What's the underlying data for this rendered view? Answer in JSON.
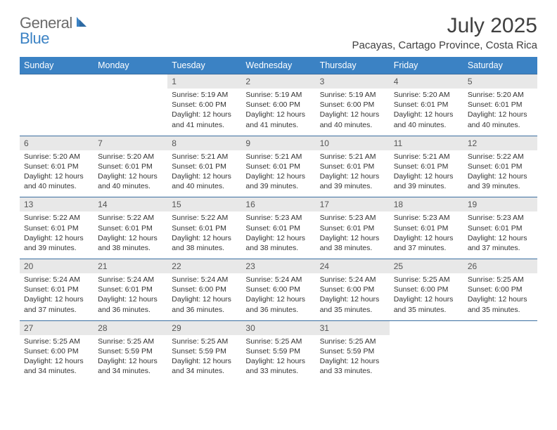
{
  "logo": {
    "general": "General",
    "blue": "Blue"
  },
  "title": "July 2025",
  "location": "Pacayas, Cartago Province, Costa Rica",
  "colors": {
    "header_bg": "#3b82c4",
    "header_text": "#ffffff",
    "daynum_bg": "#e8e8e8",
    "daynum_text": "#555555",
    "body_text": "#333333",
    "rule": "#3b6ea0",
    "logo_gray": "#6b6b6b",
    "logo_blue": "#3b82c4"
  },
  "day_headers": [
    "Sunday",
    "Monday",
    "Tuesday",
    "Wednesday",
    "Thursday",
    "Friday",
    "Saturday"
  ],
  "weeks": [
    {
      "nums": [
        "",
        "",
        "1",
        "2",
        "3",
        "4",
        "5"
      ],
      "cells": [
        null,
        null,
        {
          "sunrise": "Sunrise: 5:19 AM",
          "sunset": "Sunset: 6:00 PM",
          "day1": "Daylight: 12 hours",
          "day2": "and 41 minutes."
        },
        {
          "sunrise": "Sunrise: 5:19 AM",
          "sunset": "Sunset: 6:00 PM",
          "day1": "Daylight: 12 hours",
          "day2": "and 41 minutes."
        },
        {
          "sunrise": "Sunrise: 5:19 AM",
          "sunset": "Sunset: 6:00 PM",
          "day1": "Daylight: 12 hours",
          "day2": "and 40 minutes."
        },
        {
          "sunrise": "Sunrise: 5:20 AM",
          "sunset": "Sunset: 6:01 PM",
          "day1": "Daylight: 12 hours",
          "day2": "and 40 minutes."
        },
        {
          "sunrise": "Sunrise: 5:20 AM",
          "sunset": "Sunset: 6:01 PM",
          "day1": "Daylight: 12 hours",
          "day2": "and 40 minutes."
        }
      ]
    },
    {
      "nums": [
        "6",
        "7",
        "8",
        "9",
        "10",
        "11",
        "12"
      ],
      "cells": [
        {
          "sunrise": "Sunrise: 5:20 AM",
          "sunset": "Sunset: 6:01 PM",
          "day1": "Daylight: 12 hours",
          "day2": "and 40 minutes."
        },
        {
          "sunrise": "Sunrise: 5:20 AM",
          "sunset": "Sunset: 6:01 PM",
          "day1": "Daylight: 12 hours",
          "day2": "and 40 minutes."
        },
        {
          "sunrise": "Sunrise: 5:21 AM",
          "sunset": "Sunset: 6:01 PM",
          "day1": "Daylight: 12 hours",
          "day2": "and 40 minutes."
        },
        {
          "sunrise": "Sunrise: 5:21 AM",
          "sunset": "Sunset: 6:01 PM",
          "day1": "Daylight: 12 hours",
          "day2": "and 39 minutes."
        },
        {
          "sunrise": "Sunrise: 5:21 AM",
          "sunset": "Sunset: 6:01 PM",
          "day1": "Daylight: 12 hours",
          "day2": "and 39 minutes."
        },
        {
          "sunrise": "Sunrise: 5:21 AM",
          "sunset": "Sunset: 6:01 PM",
          "day1": "Daylight: 12 hours",
          "day2": "and 39 minutes."
        },
        {
          "sunrise": "Sunrise: 5:22 AM",
          "sunset": "Sunset: 6:01 PM",
          "day1": "Daylight: 12 hours",
          "day2": "and 39 minutes."
        }
      ]
    },
    {
      "nums": [
        "13",
        "14",
        "15",
        "16",
        "17",
        "18",
        "19"
      ],
      "cells": [
        {
          "sunrise": "Sunrise: 5:22 AM",
          "sunset": "Sunset: 6:01 PM",
          "day1": "Daylight: 12 hours",
          "day2": "and 39 minutes."
        },
        {
          "sunrise": "Sunrise: 5:22 AM",
          "sunset": "Sunset: 6:01 PM",
          "day1": "Daylight: 12 hours",
          "day2": "and 38 minutes."
        },
        {
          "sunrise": "Sunrise: 5:22 AM",
          "sunset": "Sunset: 6:01 PM",
          "day1": "Daylight: 12 hours",
          "day2": "and 38 minutes."
        },
        {
          "sunrise": "Sunrise: 5:23 AM",
          "sunset": "Sunset: 6:01 PM",
          "day1": "Daylight: 12 hours",
          "day2": "and 38 minutes."
        },
        {
          "sunrise": "Sunrise: 5:23 AM",
          "sunset": "Sunset: 6:01 PM",
          "day1": "Daylight: 12 hours",
          "day2": "and 38 minutes."
        },
        {
          "sunrise": "Sunrise: 5:23 AM",
          "sunset": "Sunset: 6:01 PM",
          "day1": "Daylight: 12 hours",
          "day2": "and 37 minutes."
        },
        {
          "sunrise": "Sunrise: 5:23 AM",
          "sunset": "Sunset: 6:01 PM",
          "day1": "Daylight: 12 hours",
          "day2": "and 37 minutes."
        }
      ]
    },
    {
      "nums": [
        "20",
        "21",
        "22",
        "23",
        "24",
        "25",
        "26"
      ],
      "cells": [
        {
          "sunrise": "Sunrise: 5:24 AM",
          "sunset": "Sunset: 6:01 PM",
          "day1": "Daylight: 12 hours",
          "day2": "and 37 minutes."
        },
        {
          "sunrise": "Sunrise: 5:24 AM",
          "sunset": "Sunset: 6:01 PM",
          "day1": "Daylight: 12 hours",
          "day2": "and 36 minutes."
        },
        {
          "sunrise": "Sunrise: 5:24 AM",
          "sunset": "Sunset: 6:00 PM",
          "day1": "Daylight: 12 hours",
          "day2": "and 36 minutes."
        },
        {
          "sunrise": "Sunrise: 5:24 AM",
          "sunset": "Sunset: 6:00 PM",
          "day1": "Daylight: 12 hours",
          "day2": "and 36 minutes."
        },
        {
          "sunrise": "Sunrise: 5:24 AM",
          "sunset": "Sunset: 6:00 PM",
          "day1": "Daylight: 12 hours",
          "day2": "and 35 minutes."
        },
        {
          "sunrise": "Sunrise: 5:25 AM",
          "sunset": "Sunset: 6:00 PM",
          "day1": "Daylight: 12 hours",
          "day2": "and 35 minutes."
        },
        {
          "sunrise": "Sunrise: 5:25 AM",
          "sunset": "Sunset: 6:00 PM",
          "day1": "Daylight: 12 hours",
          "day2": "and 35 minutes."
        }
      ]
    },
    {
      "nums": [
        "27",
        "28",
        "29",
        "30",
        "31",
        "",
        ""
      ],
      "cells": [
        {
          "sunrise": "Sunrise: 5:25 AM",
          "sunset": "Sunset: 6:00 PM",
          "day1": "Daylight: 12 hours",
          "day2": "and 34 minutes."
        },
        {
          "sunrise": "Sunrise: 5:25 AM",
          "sunset": "Sunset: 5:59 PM",
          "day1": "Daylight: 12 hours",
          "day2": "and 34 minutes."
        },
        {
          "sunrise": "Sunrise: 5:25 AM",
          "sunset": "Sunset: 5:59 PM",
          "day1": "Daylight: 12 hours",
          "day2": "and 34 minutes."
        },
        {
          "sunrise": "Sunrise: 5:25 AM",
          "sunset": "Sunset: 5:59 PM",
          "day1": "Daylight: 12 hours",
          "day2": "and 33 minutes."
        },
        {
          "sunrise": "Sunrise: 5:25 AM",
          "sunset": "Sunset: 5:59 PM",
          "day1": "Daylight: 12 hours",
          "day2": "and 33 minutes."
        },
        null,
        null
      ]
    }
  ]
}
